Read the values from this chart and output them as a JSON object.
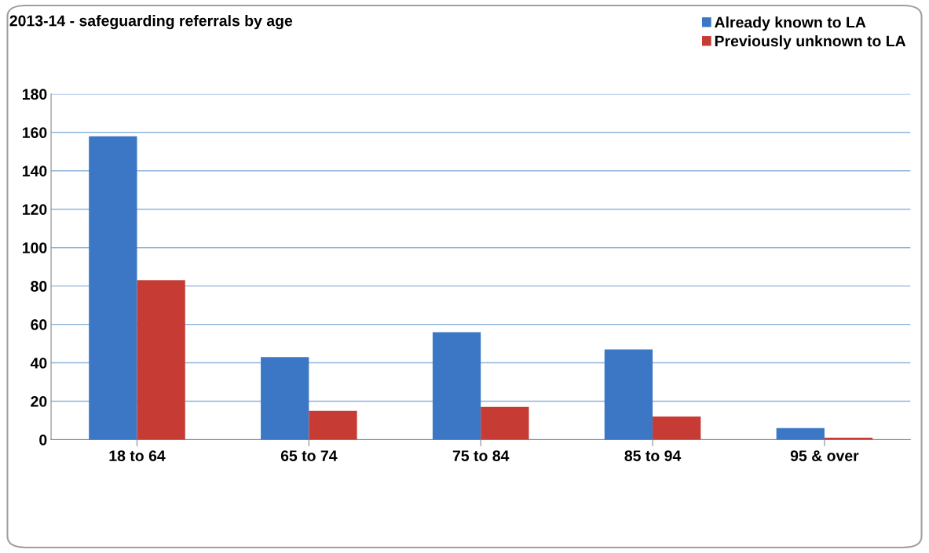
{
  "chart_data": {
    "type": "bar",
    "title": "2013-14 - safeguarding referrals by age",
    "categories": [
      "18 to 64",
      "65 to 74",
      "75 to 84",
      "85 to 94",
      "95 & over"
    ],
    "series": [
      {
        "name": "Already known to LA",
        "color": "#3b77c4",
        "values": [
          158,
          43,
          56,
          47,
          6
        ]
      },
      {
        "name": "Previously unknown to LA",
        "color": "#c63b34",
        "values": [
          83,
          15,
          17,
          12,
          1
        ]
      }
    ],
    "ylim": [
      0,
      180
    ],
    "yticks": [
      0,
      20,
      40,
      60,
      80,
      100,
      120,
      140,
      160,
      180
    ],
    "grid": "y",
    "legend": "top right"
  }
}
